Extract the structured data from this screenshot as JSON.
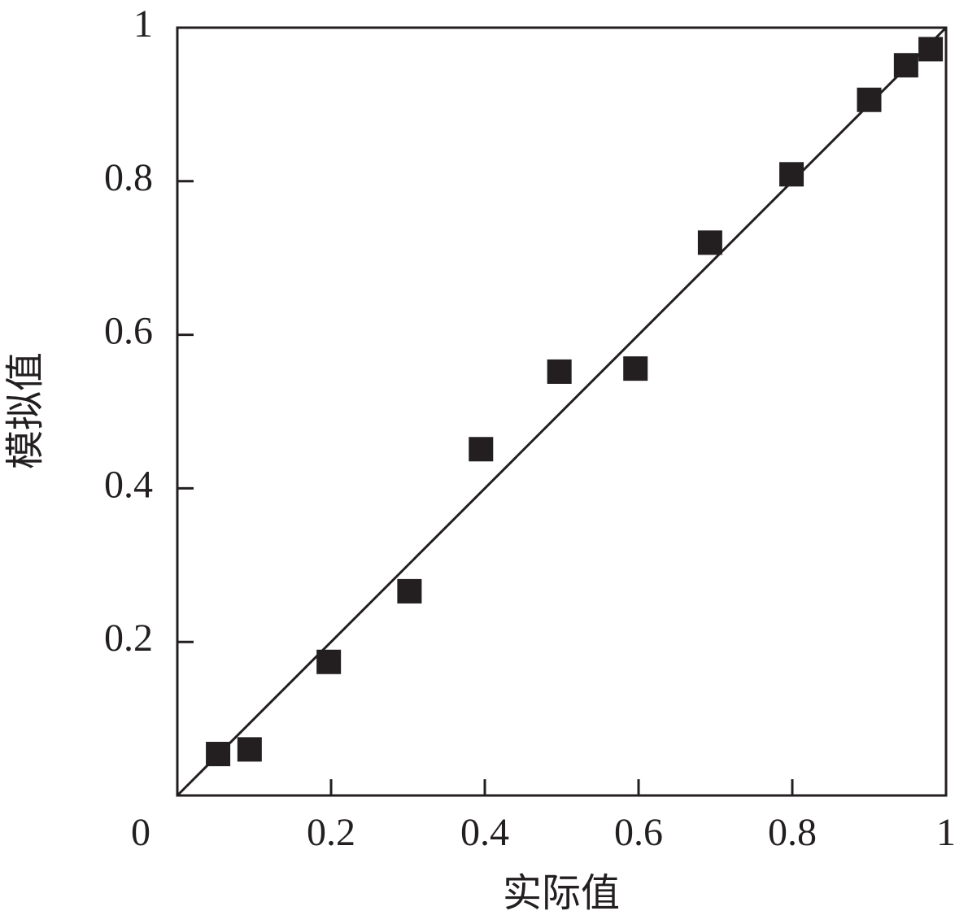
{
  "chart_data": {
    "type": "scatter",
    "x_label": "实际值",
    "y_label": "模拟值",
    "x": [
      0.053,
      0.094,
      0.197,
      0.302,
      0.395,
      0.497,
      0.596,
      0.693,
      0.799,
      0.9,
      0.948,
      0.98
    ],
    "values": [
      0.054,
      0.06,
      0.174,
      0.266,
      0.451,
      0.552,
      0.556,
      0.72,
      0.809,
      0.906,
      0.951,
      0.972
    ],
    "color": "#231f20",
    "fit_line": {
      "x": [
        0,
        1
      ],
      "y": [
        0,
        1
      ]
    },
    "xlim": [
      0,
      1
    ],
    "ylim": [
      0,
      1
    ],
    "xticks": [
      0,
      0.2,
      0.4,
      0.6,
      0.8,
      1
    ],
    "yticks": [
      0.2,
      0.4,
      0.6,
      0.8,
      1
    ]
  }
}
